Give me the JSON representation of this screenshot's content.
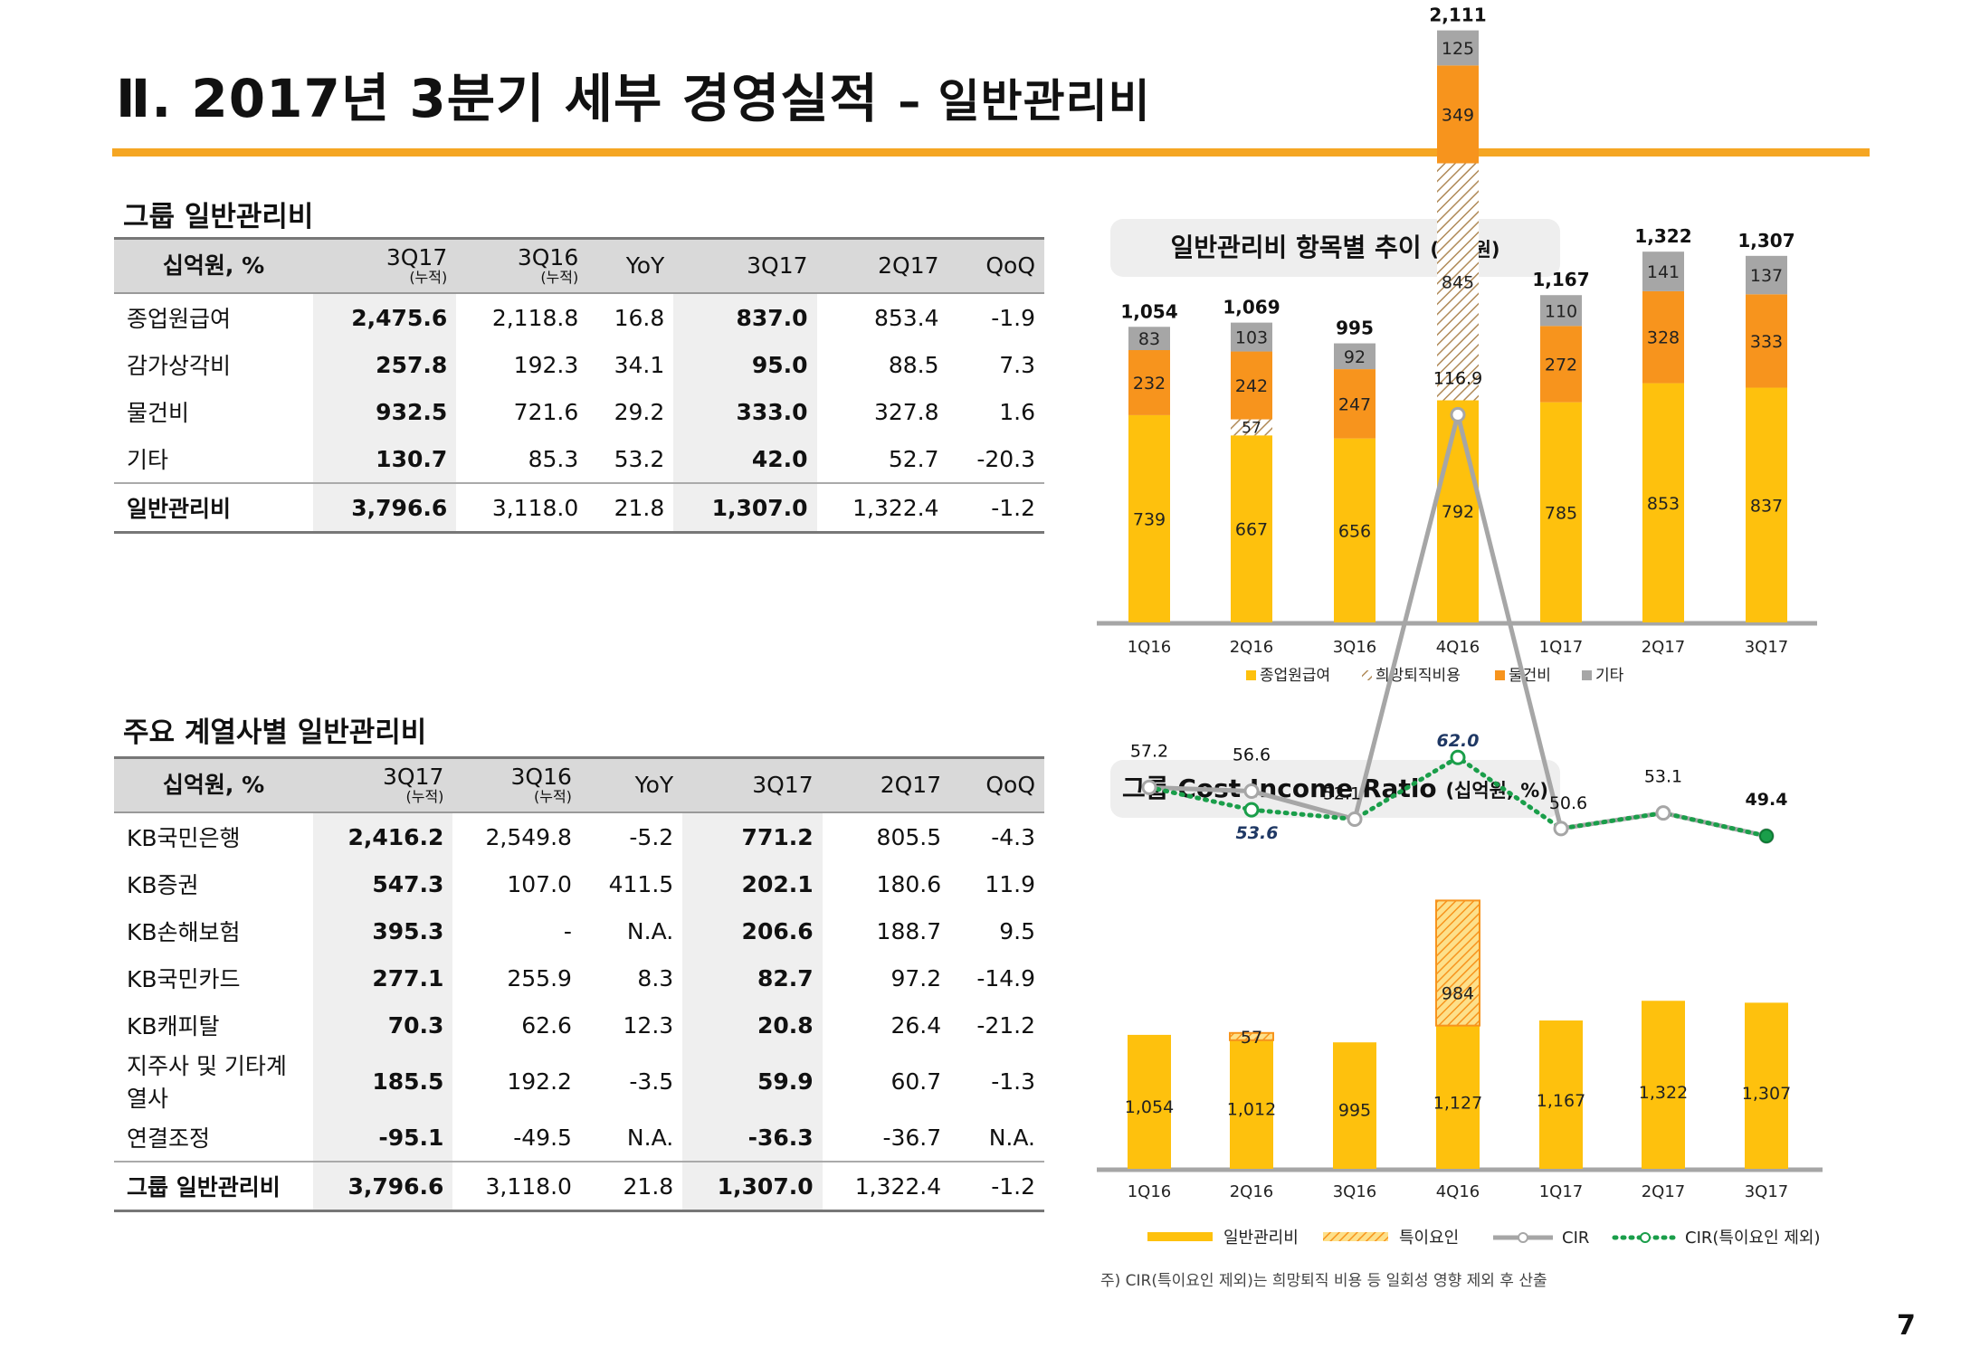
{
  "header": {
    "title": "Ⅱ. 2017년 3분기 세부 경영실적",
    "subtitle": "– 일반관리비"
  },
  "table1": {
    "title": "그룹 일반관리비",
    "unit": "십억원, %",
    "columns": [
      {
        "label": "3Q17",
        "sub": "(누적)"
      },
      {
        "label": "3Q16",
        "sub": "(누적)"
      },
      {
        "label": "YoY",
        "sub": ""
      },
      {
        "label": "3Q17",
        "sub": ""
      },
      {
        "label": "2Q17",
        "sub": ""
      },
      {
        "label": "QoQ",
        "sub": ""
      }
    ],
    "rows": [
      {
        "label": "종업원급여",
        "values": [
          "2,475.6",
          "2,118.8",
          "16.8",
          "837.0",
          "853.4",
          "-1.9"
        ]
      },
      {
        "label": "감가상각비",
        "values": [
          "257.8",
          "192.3",
          "34.1",
          "95.0",
          "88.5",
          "7.3"
        ]
      },
      {
        "label": "물건비",
        "values": [
          "932.5",
          "721.6",
          "29.2",
          "333.0",
          "327.8",
          "1.6"
        ]
      },
      {
        "label": "기타",
        "values": [
          "130.7",
          "85.3",
          "53.2",
          "42.0",
          "52.7",
          "-20.3"
        ]
      }
    ],
    "total": {
      "label": "일반관리비",
      "values": [
        "3,796.6",
        "3,118.0",
        "21.8",
        "1,307.0",
        "1,322.4",
        "-1.2"
      ]
    }
  },
  "table2": {
    "title": "주요 계열사별 일반관리비",
    "unit": "십억원, %",
    "columns": [
      {
        "label": "3Q17",
        "sub": "(누적)"
      },
      {
        "label": "3Q16",
        "sub": "(누적)"
      },
      {
        "label": "YoY",
        "sub": ""
      },
      {
        "label": "3Q17",
        "sub": ""
      },
      {
        "label": "2Q17",
        "sub": ""
      },
      {
        "label": "QoQ",
        "sub": ""
      }
    ],
    "rows": [
      {
        "label": "KB국민은행",
        "values": [
          "2,416.2",
          "2,549.8",
          "-5.2",
          "771.2",
          "805.5",
          "-4.3"
        ]
      },
      {
        "label": "KB증권",
        "values": [
          "547.3",
          "107.0",
          "411.5",
          "202.1",
          "180.6",
          "11.9"
        ]
      },
      {
        "label": "KB손해보험",
        "values": [
          "395.3",
          "-",
          "N.A.",
          "206.6",
          "188.7",
          "9.5"
        ]
      },
      {
        "label": "KB국민카드",
        "values": [
          "277.1",
          "255.9",
          "8.3",
          "82.7",
          "97.2",
          "-14.9"
        ]
      },
      {
        "label": "KB캐피탈",
        "values": [
          "70.3",
          "62.6",
          "12.3",
          "20.8",
          "26.4",
          "-21.2"
        ]
      },
      {
        "label": "지주사 및 기타계열사",
        "values": [
          "185.5",
          "192.2",
          "-3.5",
          "59.9",
          "60.7",
          "-1.3"
        ]
      },
      {
        "label": "연결조정",
        "values": [
          "-95.1",
          "-49.5",
          "N.A.",
          "-36.3",
          "-36.7",
          "N.A."
        ]
      }
    ],
    "total": {
      "label": "그룹 일반관리비",
      "values": [
        "3,796.6",
        "3,118.0",
        "21.8",
        "1,307.0",
        "1,322.4",
        "-1.2"
      ]
    }
  },
  "chart1_header": {
    "title": "일반관리비 항목별 추이",
    "unit": "(십억원)"
  },
  "chart2_header": {
    "title": "그룹 Cost Income Ratio",
    "unit": "(십억원, %)"
  },
  "footnote": "주) CIR(특이요인 제외)는 희망퇴직 비용 등 일회성 영향 제외 후 산출",
  "page_number": "7",
  "colors": {
    "accent": "#f5a623",
    "salary": "#fec10d",
    "goods": "#f7941d",
    "other": "#a6a6a6",
    "cir_line": "#a6a6a6",
    "cir_adj": "#1a9e4a"
  },
  "chart_data": [
    {
      "type": "bar",
      "stacked": true,
      "categories": [
        "1Q16",
        "2Q16",
        "3Q16",
        "4Q16",
        "1Q17",
        "2Q17",
        "3Q17"
      ],
      "series": [
        {
          "name": "종업원급여",
          "values": [
            739,
            667,
            656,
            792,
            785,
            853,
            837
          ],
          "labels": [
            "739",
            "667",
            "656",
            "792",
            "785",
            "853",
            "837"
          ]
        },
        {
          "name": "희망퇴직비용",
          "values": [
            0,
            57,
            0,
            845,
            0,
            0,
            0
          ],
          "labels": [
            "",
            "57",
            "",
            "845",
            "",
            "",
            ""
          ]
        },
        {
          "name": "물건비",
          "values": [
            232,
            242,
            247,
            349,
            272,
            328,
            333
          ],
          "labels": [
            "232",
            "242",
            "247",
            "349",
            "272",
            "328",
            "333"
          ]
        },
        {
          "name": "기타",
          "values": [
            83,
            103,
            92,
            125,
            110,
            141,
            137
          ],
          "labels": [
            "83",
            "103",
            "92",
            "125",
            "110",
            "141",
            "137"
          ]
        }
      ],
      "totals": [
        "1,054",
        "1,069",
        "995",
        "2,111",
        "1,167",
        "1,322",
        "1,307"
      ]
    },
    {
      "type": "bar+line",
      "categories": [
        "1Q16",
        "2Q16",
        "3Q16",
        "4Q16",
        "1Q17",
        "2Q17",
        "3Q17"
      ],
      "bars": {
        "name": "일반관리비",
        "values": [
          1054,
          1012,
          995,
          1127,
          1167,
          1322,
          1307
        ],
        "labels": [
          "1,054",
          "1,012",
          "995",
          "1,127",
          "1,167",
          "1,322",
          "1,307"
        ]
      },
      "special": {
        "name": "특이요인",
        "values": [
          0,
          57,
          0,
          984,
          0,
          0,
          0
        ],
        "labels": [
          "",
          "57",
          "",
          "984",
          "",
          "",
          ""
        ]
      },
      "cir": {
        "name": "CIR",
        "values": [
          57.2,
          56.6,
          52.1,
          116.9,
          50.6,
          53.1,
          49.4
        ],
        "labels": [
          "57.2",
          "56.6",
          "52.1",
          "116.9",
          "50.6",
          "53.1",
          "49.4"
        ]
      },
      "cir_adj": {
        "name": "CIR(특이요인 제외)",
        "values": [
          57.2,
          53.6,
          52.1,
          62.0,
          50.6,
          53.1,
          49.4
        ],
        "labels": [
          "",
          "53.6",
          "",
          "62.0",
          "",
          "",
          ""
        ]
      }
    }
  ]
}
